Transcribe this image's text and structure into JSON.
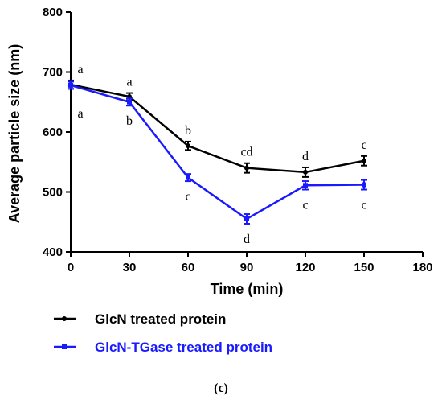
{
  "chart_data": {
    "type": "line",
    "xlabel": "Time (min)",
    "ylabel": "Average particle size (nm)",
    "xlim": [
      0,
      180
    ],
    "ylim": [
      400,
      800
    ],
    "xticks": [
      0,
      30,
      60,
      90,
      120,
      150,
      180
    ],
    "yticks": [
      400,
      500,
      600,
      700,
      800
    ],
    "grid": false,
    "legend_position": "below",
    "x": [
      0,
      30,
      60,
      90,
      120,
      150
    ],
    "series": [
      {
        "name": "GlcN treated protein",
        "color": "#000000",
        "values": [
          679,
          659,
          577,
          540,
          533,
          552
        ],
        "errors": [
          7,
          6,
          7,
          8,
          8,
          8
        ],
        "letters": [
          "a",
          "a",
          "b",
          "cd",
          "d",
          "c"
        ],
        "letter_placement": "above"
      },
      {
        "name": "GlcN-TGase treated protein",
        "color": "#1a1aff",
        "values": [
          678,
          650,
          524,
          455,
          511,
          512
        ],
        "errors": [
          6,
          6,
          6,
          8,
          7,
          8
        ],
        "letters": [
          "a",
          "b",
          "c",
          "d",
          "c",
          "c"
        ],
        "letter_placement": "below"
      }
    ]
  },
  "caption": "(c)"
}
